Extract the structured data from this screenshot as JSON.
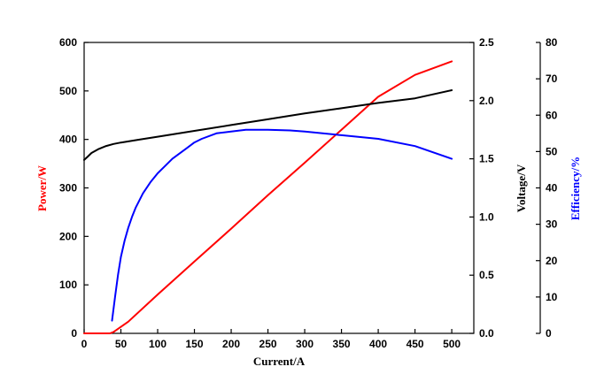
{
  "chart_data": {
    "type": "line",
    "xlabel": "Current/A",
    "ylabel_left": "Power/W",
    "ylabel_right1": "Voltage/V",
    "ylabel_right2": "Efficiency/%",
    "xlim": [
      0,
      530
    ],
    "xticks": [
      0,
      50,
      100,
      150,
      200,
      250,
      300,
      350,
      400,
      450,
      500
    ],
    "axes": {
      "power": {
        "lim": [
          0,
          600
        ],
        "ticks": [
          "0",
          "100",
          "200",
          "300",
          "400",
          "500",
          "600"
        ],
        "color": "#ff0000"
      },
      "voltage": {
        "lim": [
          0,
          2.5
        ],
        "ticks": [
          "0.0",
          "0.5",
          "1.0",
          "1.5",
          "2.0",
          "2.5"
        ],
        "color": "#000000"
      },
      "efficiency": {
        "lim": [
          0,
          80
        ],
        "ticks": [
          "0",
          "10",
          "20",
          "30",
          "40",
          "50",
          "60",
          "70",
          "80"
        ],
        "color": "#000000"
      }
    },
    "series": [
      {
        "axis": "power",
        "color": "#ff0000",
        "x": [
          0,
          35,
          40,
          60,
          100,
          150,
          200,
          250,
          300,
          350,
          400,
          450,
          500
        ],
        "y": [
          0,
          0,
          3,
          24,
          80,
          148,
          216,
          285,
          352,
          420,
          488,
          533,
          561
        ]
      },
      {
        "axis": "voltage",
        "color": "#000000",
        "x": [
          0,
          5,
          10,
          20,
          30,
          40,
          50,
          75,
          100,
          150,
          200,
          250,
          300,
          350,
          400,
          450,
          500
        ],
        "y": [
          1.49,
          1.52,
          1.55,
          1.585,
          1.61,
          1.628,
          1.64,
          1.665,
          1.69,
          1.74,
          1.79,
          1.84,
          1.89,
          1.935,
          1.98,
          2.02,
          2.09
        ]
      },
      {
        "axis": "efficiency",
        "color": "#0000ff",
        "x": [
          38,
          42,
          46,
          50,
          55,
          60,
          65,
          70,
          80,
          90,
          100,
          110,
          120,
          130,
          140,
          150,
          160,
          180,
          200,
          220,
          250,
          280,
          300,
          350,
          400,
          450,
          500
        ],
        "y": [
          3.5,
          10,
          16,
          21,
          25.5,
          29,
          32,
          34.5,
          38.5,
          41.5,
          44,
          46,
          48,
          49.5,
          51,
          52.5,
          53.5,
          55,
          55.5,
          56,
          56,
          55.8,
          55.5,
          54.5,
          53.5,
          51.5,
          48
        ]
      }
    ]
  }
}
